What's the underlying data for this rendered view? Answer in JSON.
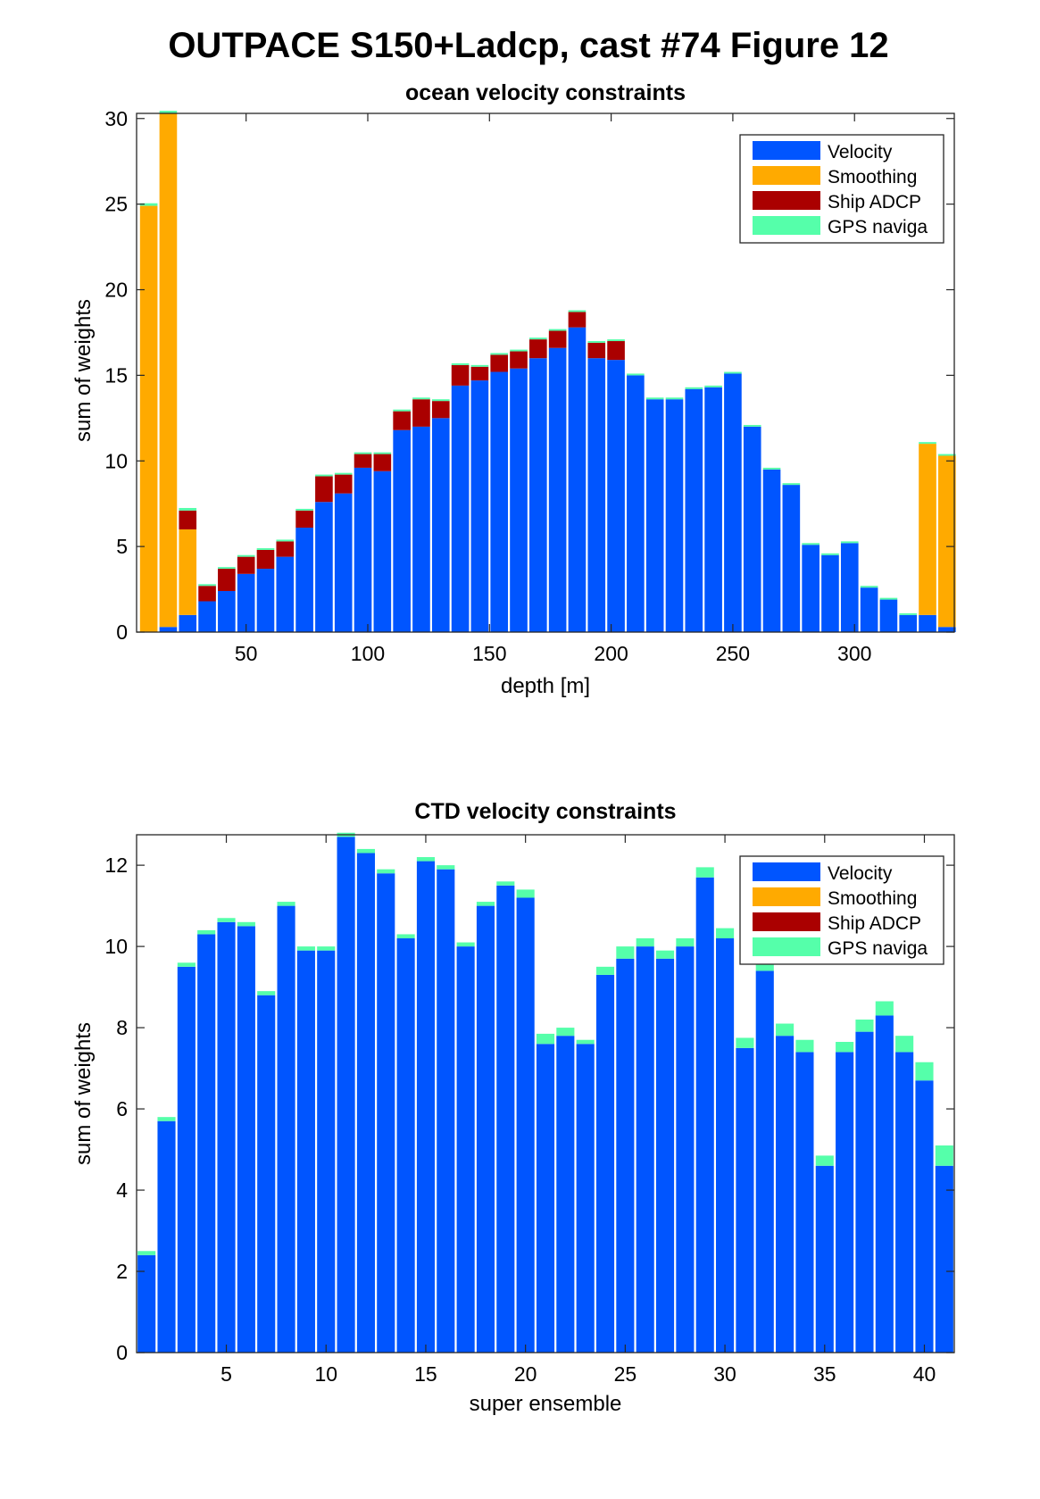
{
  "figure": {
    "suptitle": "OUTPACE S150+Ladcp, cast #74  Figure 12"
  },
  "colors": {
    "Velocity": "#0055ff",
    "Smoothing": "#ffaa00",
    "Ship ADCP": "#aa0000",
    "GPS naviga": "#55ffaa"
  },
  "chart_data": [
    {
      "type": "bar",
      "stacked": true,
      "title": "ocean velocity constraints",
      "xlabel": "depth [m]",
      "ylabel": "sum of weights",
      "xlim": [
        5,
        341
      ],
      "ylim": [
        0,
        30.3
      ],
      "xticks": [
        50,
        100,
        150,
        200,
        250,
        300
      ],
      "yticks": [
        0,
        5,
        10,
        15,
        20,
        25,
        30
      ],
      "legend_position": "top-right",
      "x": [
        10,
        18,
        26,
        34,
        42,
        50,
        58,
        66,
        74,
        82,
        90,
        98,
        106,
        114,
        122,
        130,
        138,
        146,
        154,
        162,
        170,
        178,
        186,
        194,
        202,
        210,
        218,
        226,
        234,
        242,
        250,
        258,
        266,
        274,
        282,
        290,
        298,
        306,
        314,
        322,
        330,
        338
      ],
      "series": [
        {
          "name": "Velocity",
          "values": [
            0,
            0.3,
            1.0,
            1.8,
            2.4,
            3.4,
            3.7,
            4.4,
            6.1,
            7.6,
            8.1,
            9.6,
            9.4,
            11.8,
            12.0,
            12.5,
            14.4,
            14.7,
            15.2,
            15.4,
            16.0,
            16.6,
            17.8,
            16.0,
            15.9,
            15.0,
            13.6,
            13.6,
            14.2,
            14.3,
            15.1,
            12.0,
            9.5,
            8.6,
            5.1,
            4.5,
            5.2,
            2.6,
            1.9,
            1.0,
            1.0,
            0.3
          ]
        },
        {
          "name": "Smoothing",
          "values": [
            24.9,
            30.0,
            5.0,
            0,
            0,
            0,
            0,
            0,
            0,
            0,
            0,
            0,
            0,
            0,
            0,
            0,
            0,
            0,
            0,
            0,
            0,
            0,
            0,
            0,
            0,
            0,
            0,
            0,
            0,
            0,
            0,
            0,
            0,
            0,
            0,
            0,
            0,
            0,
            0,
            0,
            10.0,
            10.0
          ]
        },
        {
          "name": "Ship ADCP",
          "values": [
            0,
            0,
            1.1,
            0.9,
            1.3,
            1.0,
            1.1,
            0.9,
            1.0,
            1.5,
            1.1,
            0.8,
            1.0,
            1.1,
            1.6,
            1.0,
            1.2,
            0.8,
            1.0,
            1.0,
            1.1,
            1.0,
            0.9,
            0.9,
            1.1,
            0,
            0,
            0,
            0,
            0,
            0,
            0,
            0,
            0,
            0,
            0,
            0,
            0,
            0,
            0,
            0,
            0
          ]
        },
        {
          "name": "GPS naviga",
          "values": [
            0.15,
            0.15,
            0.15,
            0.1,
            0.1,
            0.1,
            0.1,
            0.1,
            0.1,
            0.1,
            0.1,
            0.1,
            0.1,
            0.1,
            0.1,
            0.1,
            0.1,
            0.1,
            0.1,
            0.1,
            0.1,
            0.1,
            0.1,
            0.1,
            0.1,
            0.1,
            0.1,
            0.1,
            0.1,
            0.1,
            0.1,
            0.1,
            0.1,
            0.1,
            0.1,
            0.1,
            0.1,
            0.1,
            0.1,
            0.1,
            0.1,
            0.1
          ]
        }
      ]
    },
    {
      "type": "bar",
      "stacked": true,
      "title": "CTD velocity constraints",
      "xlabel": "super ensemble",
      "ylabel": "sum of weights",
      "xlim": [
        0.5,
        41.5
      ],
      "ylim": [
        0,
        12.75
      ],
      "xticks": [
        5,
        10,
        15,
        20,
        25,
        30,
        35,
        40
      ],
      "yticks": [
        0,
        2,
        4,
        6,
        8,
        10,
        12
      ],
      "legend_position": "top-right",
      "x": [
        1,
        2,
        3,
        4,
        5,
        6,
        7,
        8,
        9,
        10,
        11,
        12,
        13,
        14,
        15,
        16,
        17,
        18,
        19,
        20,
        21,
        22,
        23,
        24,
        25,
        26,
        27,
        28,
        29,
        30,
        31,
        32,
        33,
        34,
        35,
        36,
        37,
        38,
        39,
        40,
        41
      ],
      "series": [
        {
          "name": "Velocity",
          "values": [
            2.4,
            5.7,
            9.5,
            10.3,
            10.6,
            10.5,
            8.8,
            11.0,
            9.9,
            9.9,
            12.7,
            12.3,
            11.8,
            10.2,
            12.1,
            11.9,
            10.0,
            11.0,
            11.5,
            11.2,
            7.6,
            7.8,
            7.6,
            9.3,
            9.7,
            10.0,
            9.7,
            10.0,
            11.7,
            10.2,
            7.5,
            9.4,
            7.8,
            7.4,
            4.6,
            7.4,
            7.9,
            8.3,
            7.4,
            6.7,
            4.6
          ]
        },
        {
          "name": "Smoothing",
          "values": [
            0,
            0,
            0,
            0,
            0,
            0,
            0,
            0,
            0,
            0,
            0,
            0,
            0,
            0,
            0,
            0,
            0,
            0,
            0,
            0,
            0,
            0,
            0,
            0,
            0,
            0,
            0,
            0,
            0,
            0,
            0,
            0,
            0,
            0,
            0,
            0,
            0,
            0,
            0,
            0,
            0
          ]
        },
        {
          "name": "Ship ADCP",
          "values": [
            0,
            0,
            0,
            0,
            0,
            0,
            0,
            0,
            0,
            0,
            0,
            0,
            0,
            0,
            0,
            0,
            0,
            0,
            0,
            0,
            0,
            0,
            0,
            0,
            0,
            0,
            0,
            0,
            0,
            0,
            0,
            0,
            0,
            0,
            0,
            0,
            0,
            0,
            0,
            0,
            0
          ]
        },
        {
          "name": "GPS naviga",
          "values": [
            0.1,
            0.1,
            0.1,
            0.1,
            0.1,
            0.1,
            0.1,
            0.1,
            0.1,
            0.1,
            0.1,
            0.1,
            0.1,
            0.1,
            0.1,
            0.1,
            0.1,
            0.1,
            0.1,
            0.2,
            0.25,
            0.2,
            0.1,
            0.2,
            0.3,
            0.2,
            0.2,
            0.2,
            0.25,
            0.25,
            0.25,
            0.25,
            0.3,
            0.3,
            0.25,
            0.25,
            0.3,
            0.35,
            0.4,
            0.45,
            0.5
          ]
        }
      ]
    }
  ]
}
